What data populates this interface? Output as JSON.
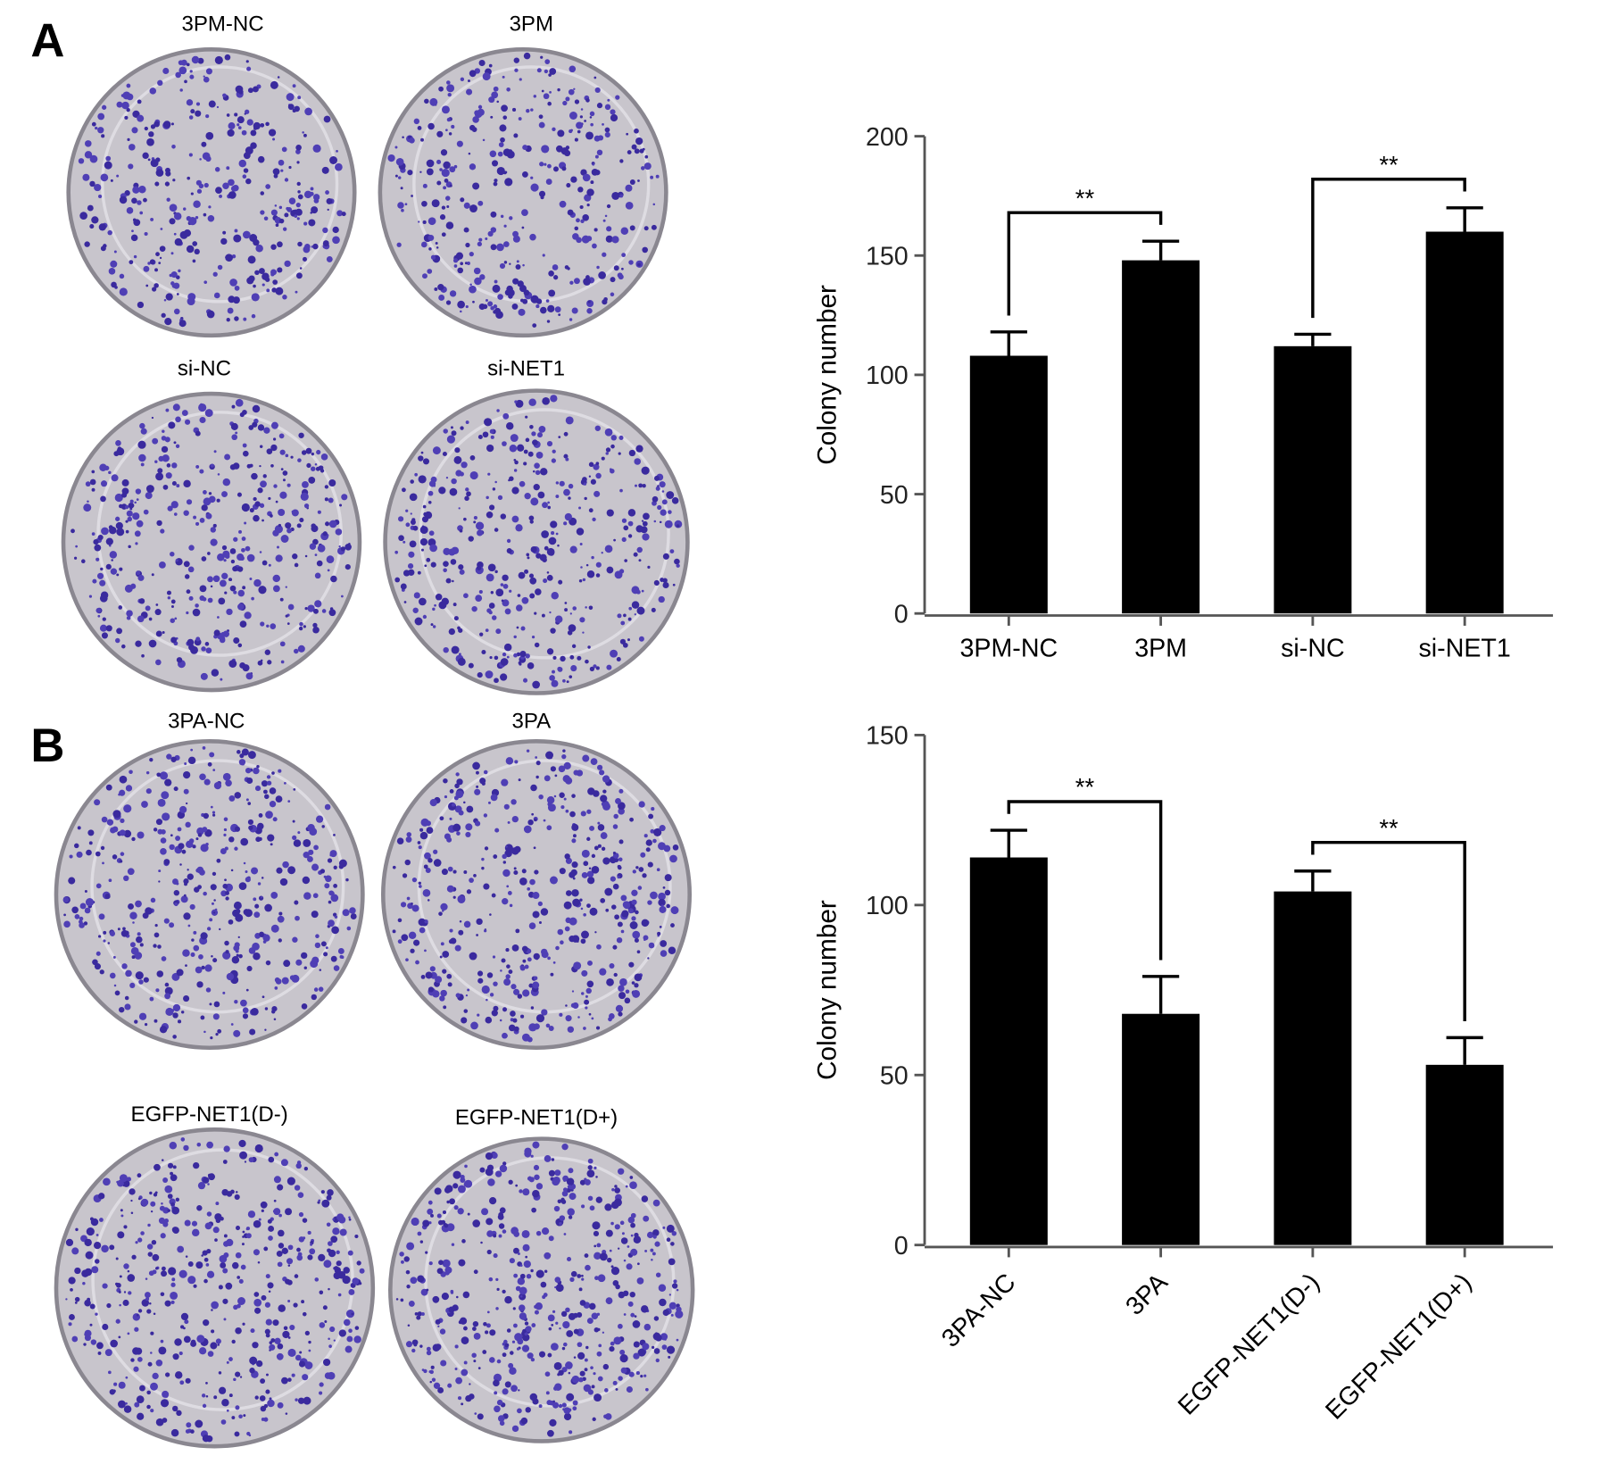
{
  "panel_labels": [
    "A",
    "B"
  ],
  "plate_labels": [
    [
      "3PM-NC",
      "3PM",
      "si-NC",
      "si-NET1"
    ],
    [
      "3PA-NC",
      "3PA",
      "EGFP-NET1(D-)",
      "EGFP-NET1(D+)"
    ]
  ],
  "chart_data": [
    {
      "type": "bar",
      "ylabel": "Colony number",
      "categories": [
        "3PM-NC",
        "3PM",
        "si-NC",
        "si-NET1"
      ],
      "values": [
        108,
        148,
        112,
        160
      ],
      "errors": [
        10,
        8,
        5,
        10
      ],
      "color": "#000000",
      "ylim": [
        0,
        200
      ],
      "yticks": [
        0,
        50,
        100,
        150,
        200
      ],
      "annotations": [
        "**",
        "**"
      ]
    },
    {
      "type": "bar",
      "ylabel": "Colony number",
      "categories": [
        "3PA-NC",
        "3PA",
        "EGFP-NET1(D-)",
        "EGFP-NET1(D+)"
      ],
      "values": [
        114,
        68,
        104,
        53
      ],
      "errors": [
        8,
        11,
        6,
        8
      ],
      "color": "#000000",
      "ylim": [
        0,
        150
      ],
      "yticks": [
        0,
        50,
        100,
        150
      ],
      "xtick_rotation": -45,
      "annotations": [
        "**",
        "**"
      ]
    }
  ]
}
